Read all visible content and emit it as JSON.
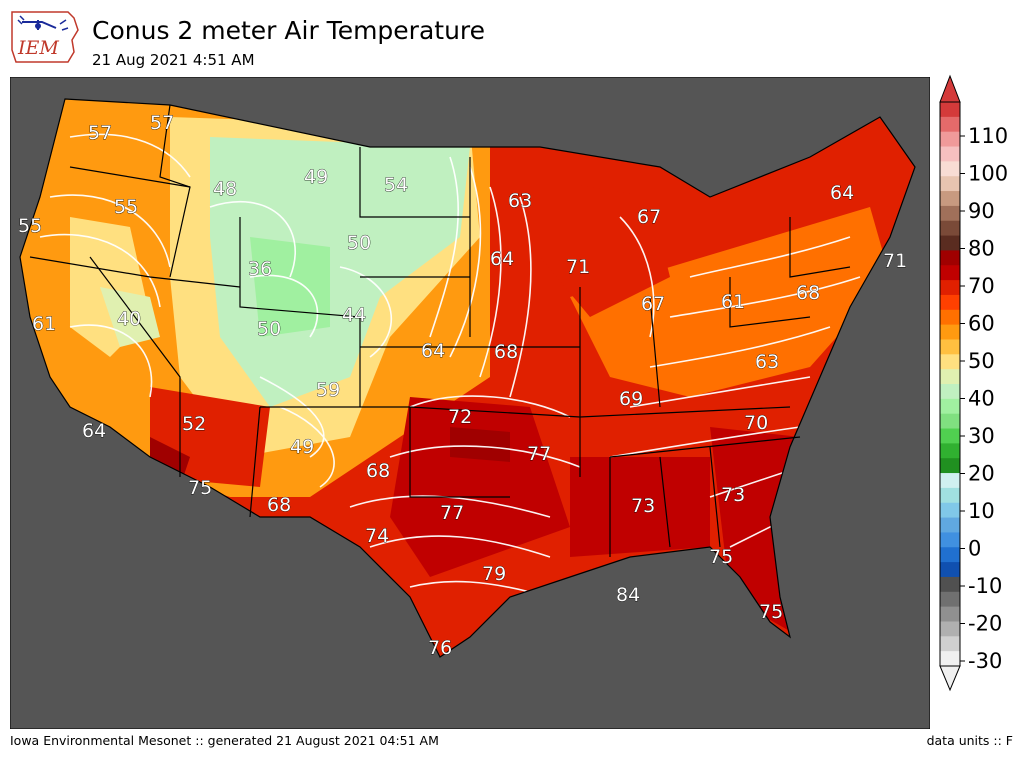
{
  "header": {
    "logo_text": "IEM",
    "title": "Conus 2 meter Air Temperature",
    "subtitle": "21 Aug 2021 4:51 AM"
  },
  "footer": {
    "left": "Iowa Environmental Mesonet :: generated 21 August 2021 04:51 AM",
    "right": "data units :: F"
  },
  "colorbar": {
    "tick_labels": [
      "110",
      "100",
      "90",
      "80",
      "70",
      "60",
      "50",
      "40",
      "30",
      "20",
      "10",
      "0",
      "-10",
      "-20",
      "-30"
    ],
    "colors_top_to_bottom": [
      "#d43a3a",
      "#e46a6a",
      "#f09a9a",
      "#f6c0c0",
      "#f8dcd4",
      "#e8c4b0",
      "#c89a80",
      "#a0705a",
      "#7a4a38",
      "#5a2c20",
      "#a00000",
      "#c00000",
      "#e02000",
      "#ff4000",
      "#ff7000",
      "#ff9a10",
      "#ffc040",
      "#ffe080",
      "#e0f0b0",
      "#c0f0c0",
      "#a0f0a0",
      "#80e080",
      "#50d050",
      "#30b030",
      "#209020",
      "#d0f0f0",
      "#a0e0e0",
      "#80c8e8",
      "#60a8e0",
      "#4090e0",
      "#2070d0",
      "#1050b0",
      "#505050",
      "#707070",
      "#909090",
      "#b0b0b0",
      "#d0d0d0",
      "#f0f0f0"
    ]
  },
  "map": {
    "background_color": "#555555",
    "legend_values": {
      "labels": [
        {
          "v": "57"
        },
        {
          "v": "57"
        },
        {
          "v": "55"
        },
        {
          "v": "55"
        },
        {
          "v": "48"
        },
        {
          "v": "49"
        },
        {
          "v": "54"
        },
        {
          "v": "63"
        },
        {
          "v": "64"
        },
        {
          "v": "67"
        },
        {
          "v": "71"
        },
        {
          "v": "64"
        },
        {
          "v": "71"
        },
        {
          "v": "50"
        },
        {
          "v": "36"
        },
        {
          "v": "61"
        },
        {
          "v": "40"
        },
        {
          "v": "50"
        },
        {
          "v": "44"
        },
        {
          "v": "64"
        },
        {
          "v": "68"
        },
        {
          "v": "67"
        },
        {
          "v": "61"
        },
        {
          "v": "68"
        },
        {
          "v": "63"
        },
        {
          "v": "59"
        },
        {
          "v": "69"
        },
        {
          "v": "72"
        },
        {
          "v": "52"
        },
        {
          "v": "64"
        },
        {
          "v": "49"
        },
        {
          "v": "77"
        },
        {
          "v": "70"
        },
        {
          "v": "75"
        },
        {
          "v": "68"
        },
        {
          "v": "68"
        },
        {
          "v": "77"
        },
        {
          "v": "73"
        },
        {
          "v": "73"
        },
        {
          "v": "74"
        },
        {
          "v": "75"
        },
        {
          "v": "79"
        },
        {
          "v": "84"
        },
        {
          "v": "75"
        },
        {
          "v": "76"
        }
      ]
    }
  }
}
